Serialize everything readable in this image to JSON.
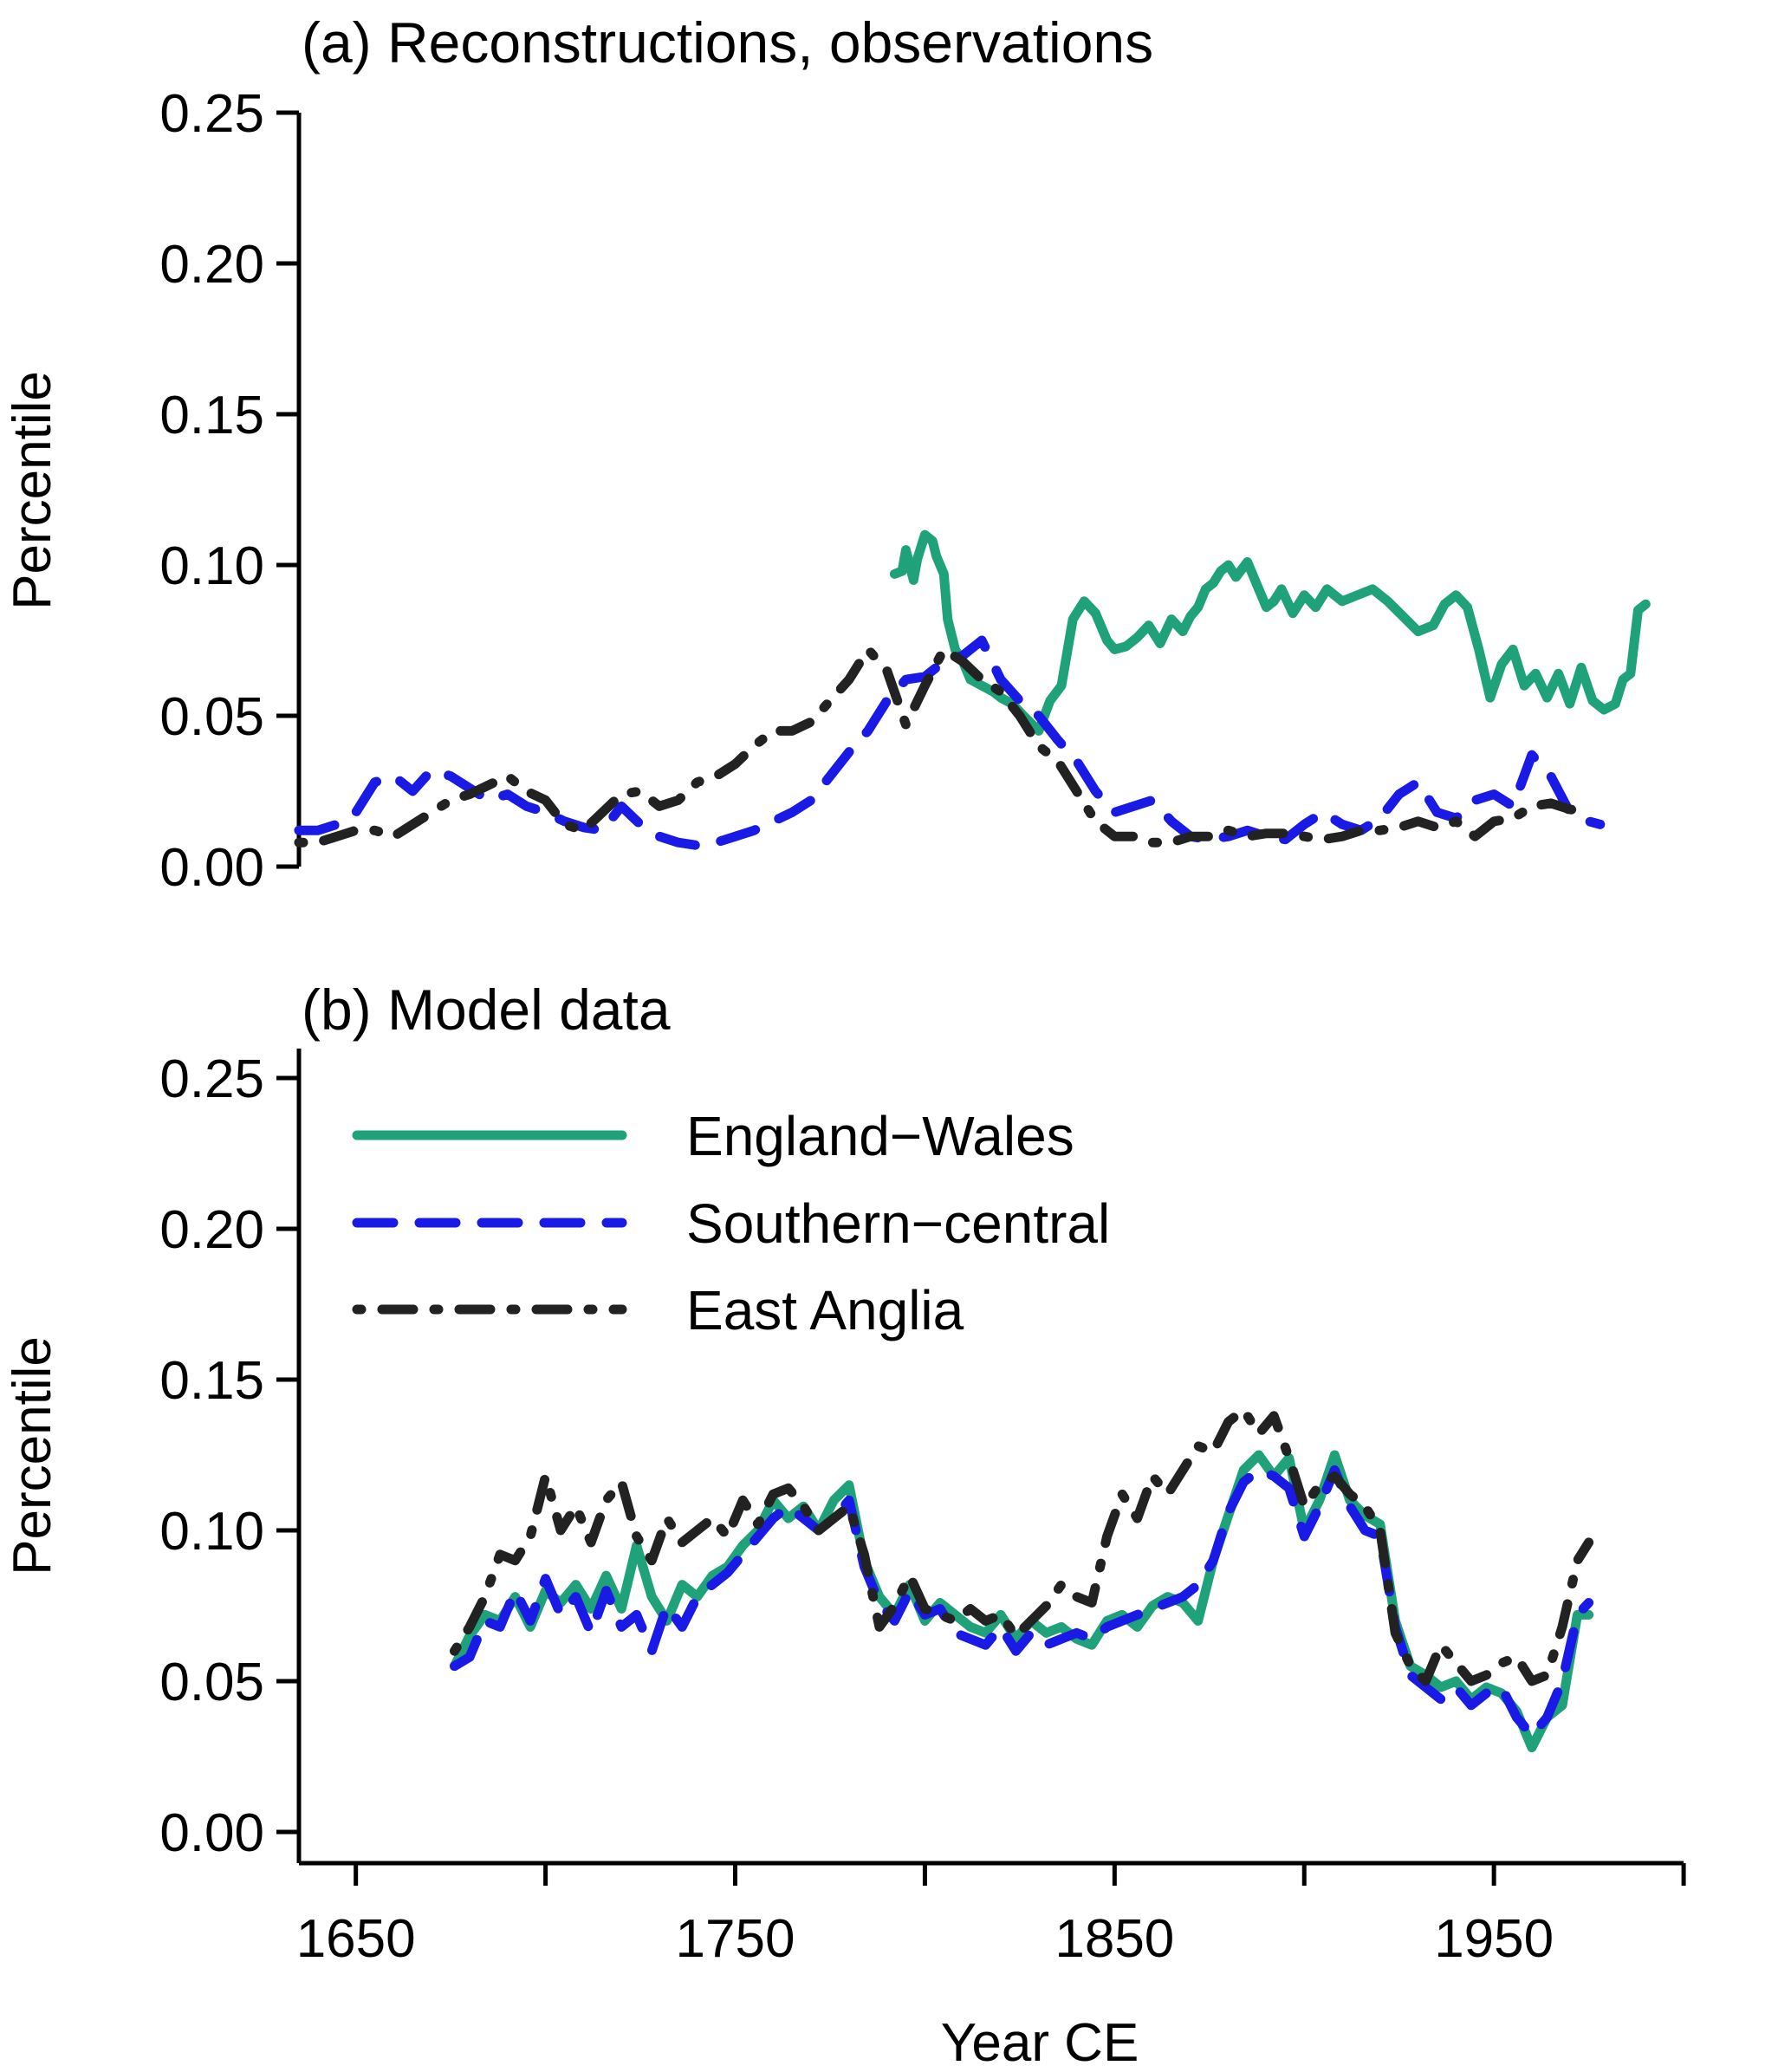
{
  "colors": {
    "england_wales": "#1fa17a",
    "southern_central": "#1a1ae6",
    "east_anglia": "#222222",
    "axis": "#000000"
  },
  "chart_data": [
    {
      "type": "line",
      "title": "(a) Reconstructions, observations",
      "xlabel": "",
      "ylabel": "Percentile",
      "xlim": [
        1635,
        2013
      ],
      "ylim": [
        0,
        0.25
      ],
      "yticks": [
        "0.00",
        "0.05",
        "0.10",
        "0.15",
        "0.20",
        "0.25"
      ],
      "yticks_values": [
        0,
        0.05,
        0.1,
        0.15,
        0.2,
        0.25
      ],
      "series": [
        {
          "name": "England−Wales",
          "key": "england_wales",
          "style": "solid",
          "x": [
            1792,
            1794,
            1795,
            1797,
            1798,
            1800,
            1802,
            1803,
            1805,
            1806,
            1808,
            1810,
            1812,
            1815,
            1818,
            1820,
            1823,
            1826,
            1830,
            1833,
            1836,
            1839,
            1842,
            1845,
            1848,
            1850,
            1853,
            1856,
            1859,
            1862,
            1865,
            1868,
            1870,
            1872,
            1874,
            1876,
            1878,
            1880,
            1882,
            1885,
            1888,
            1890,
            1892,
            1894,
            1897,
            1900,
            1903,
            1906,
            1910,
            1914,
            1918,
            1922,
            1926,
            1930,
            1934,
            1937,
            1940,
            1943,
            1946,
            1949,
            1952,
            1955,
            1958,
            1961,
            1964,
            1967,
            1970,
            1973,
            1976,
            1979,
            1982,
            1984,
            1986,
            1988,
            1990
          ],
          "y": [
            0.097,
            0.098,
            0.105,
            0.095,
            0.102,
            0.11,
            0.108,
            0.103,
            0.097,
            0.082,
            0.072,
            0.068,
            0.062,
            0.06,
            0.058,
            0.056,
            0.054,
            0.05,
            0.045,
            0.055,
            0.06,
            0.082,
            0.088,
            0.084,
            0.075,
            0.072,
            0.073,
            0.076,
            0.08,
            0.074,
            0.082,
            0.078,
            0.083,
            0.086,
            0.092,
            0.094,
            0.098,
            0.1,
            0.096,
            0.101,
            0.092,
            0.086,
            0.088,
            0.092,
            0.084,
            0.09,
            0.086,
            0.092,
            0.088,
            0.09,
            0.092,
            0.088,
            0.083,
            0.078,
            0.08,
            0.087,
            0.09,
            0.086,
            0.072,
            0.056,
            0.067,
            0.072,
            0.06,
            0.064,
            0.056,
            0.064,
            0.054,
            0.066,
            0.055,
            0.052,
            0.054,
            0.062,
            0.064,
            0.085,
            0.087
          ]
        },
        {
          "name": "Southern−central",
          "key": "southern_central",
          "style": "dashed",
          "x": [
            1635,
            1640,
            1645,
            1650,
            1655,
            1660,
            1665,
            1670,
            1675,
            1680,
            1685,
            1690,
            1695,
            1700,
            1705,
            1710,
            1715,
            1720,
            1725,
            1730,
            1735,
            1740,
            1745,
            1750,
            1755,
            1760,
            1765,
            1770,
            1775,
            1780,
            1785,
            1790,
            1795,
            1800,
            1805,
            1810,
            1815,
            1820,
            1825,
            1830,
            1835,
            1840,
            1845,
            1850,
            1855,
            1860,
            1865,
            1870,
            1875,
            1880,
            1885,
            1890,
            1895,
            1900,
            1905,
            1910,
            1915,
            1920,
            1925,
            1930,
            1935,
            1940,
            1945,
            1950,
            1955,
            1960,
            1965,
            1970,
            1975,
            1978
          ],
          "y": [
            0.012,
            0.012,
            0.014,
            0.018,
            0.028,
            0.03,
            0.025,
            0.032,
            0.03,
            0.026,
            0.022,
            0.024,
            0.02,
            0.018,
            0.015,
            0.013,
            0.012,
            0.02,
            0.014,
            0.01,
            0.008,
            0.007,
            0.008,
            0.01,
            0.012,
            0.015,
            0.018,
            0.022,
            0.03,
            0.038,
            0.045,
            0.055,
            0.062,
            0.063,
            0.068,
            0.07,
            0.075,
            0.062,
            0.055,
            0.05,
            0.042,
            0.035,
            0.025,
            0.018,
            0.02,
            0.022,
            0.015,
            0.01,
            0.009,
            0.01,
            0.012,
            0.01,
            0.009,
            0.014,
            0.018,
            0.014,
            0.012,
            0.016,
            0.024,
            0.028,
            0.018,
            0.016,
            0.022,
            0.024,
            0.02,
            0.037,
            0.03,
            0.018,
            0.015,
            0.014
          ]
        },
        {
          "name": "East Anglia",
          "key": "east_anglia",
          "style": "dashdot",
          "x": [
            1635,
            1640,
            1645,
            1650,
            1655,
            1660,
            1665,
            1670,
            1675,
            1680,
            1685,
            1690,
            1695,
            1700,
            1705,
            1710,
            1715,
            1720,
            1725,
            1730,
            1735,
            1740,
            1745,
            1750,
            1755,
            1760,
            1765,
            1770,
            1775,
            1780,
            1785,
            1790,
            1795,
            1800,
            1805,
            1810,
            1815,
            1820,
            1825,
            1830,
            1835,
            1840,
            1845,
            1850,
            1855,
            1860,
            1865,
            1870,
            1875,
            1880,
            1885,
            1890,
            1895,
            1900,
            1905,
            1910,
            1915,
            1920,
            1925,
            1930,
            1935,
            1940,
            1945,
            1950,
            1955,
            1960,
            1965,
            1970,
            1975
          ],
          "y": [
            0.008,
            0.008,
            0.01,
            0.012,
            0.012,
            0.01,
            0.014,
            0.018,
            0.022,
            0.024,
            0.027,
            0.03,
            0.025,
            0.022,
            0.014,
            0.012,
            0.018,
            0.024,
            0.025,
            0.02,
            0.022,
            0.028,
            0.03,
            0.034,
            0.04,
            0.045,
            0.045,
            0.048,
            0.055,
            0.062,
            0.072,
            0.065,
            0.047,
            0.06,
            0.072,
            0.068,
            0.062,
            0.058,
            0.05,
            0.04,
            0.035,
            0.025,
            0.015,
            0.01,
            0.01,
            0.008,
            0.008,
            0.01,
            0.01,
            0.012,
            0.01,
            0.011,
            0.011,
            0.01,
            0.009,
            0.01,
            0.012,
            0.012,
            0.013,
            0.015,
            0.013,
            0.015,
            0.01,
            0.015,
            0.016,
            0.02,
            0.021,
            0.019,
            0.018
          ]
        }
      ]
    },
    {
      "type": "line",
      "title": "(b) Model data",
      "xlabel": "Year CE",
      "ylabel": "Percentile",
      "xlim": [
        1635,
        2013
      ],
      "ylim": [
        0,
        0.25
      ],
      "xticks": [
        "1650",
        "1750",
        "1850",
        "1950"
      ],
      "xticks_values": [
        1650,
        1750,
        1850,
        1950
      ],
      "xticks_minor": [
        1700,
        1800,
        1900,
        2000
      ],
      "yticks": [
        "0.00",
        "0.05",
        "0.10",
        "0.15",
        "0.20",
        "0.25"
      ],
      "yticks_values": [
        0,
        0.05,
        0.1,
        0.15,
        0.2,
        0.25
      ],
      "legend_position": "top-left",
      "series": [
        {
          "name": "England−Wales",
          "key": "england_wales",
          "style": "solid",
          "x": [
            1676,
            1680,
            1684,
            1688,
            1692,
            1696,
            1700,
            1704,
            1708,
            1712,
            1716,
            1720,
            1724,
            1728,
            1732,
            1736,
            1740,
            1744,
            1748,
            1752,
            1756,
            1760,
            1764,
            1768,
            1772,
            1776,
            1780,
            1784,
            1788,
            1792,
            1796,
            1800,
            1804,
            1808,
            1812,
            1816,
            1820,
            1824,
            1828,
            1832,
            1836,
            1840,
            1844,
            1848,
            1852,
            1856,
            1860,
            1864,
            1868,
            1872,
            1876,
            1880,
            1884,
            1888,
            1892,
            1896,
            1900,
            1904,
            1908,
            1912,
            1916,
            1920,
            1924,
            1928,
            1932,
            1936,
            1940,
            1944,
            1948,
            1952,
            1956,
            1960,
            1964,
            1968,
            1972,
            1975
          ],
          "y": [
            0.055,
            0.065,
            0.072,
            0.07,
            0.078,
            0.068,
            0.08,
            0.076,
            0.082,
            0.074,
            0.085,
            0.074,
            0.095,
            0.078,
            0.07,
            0.082,
            0.078,
            0.085,
            0.088,
            0.095,
            0.1,
            0.11,
            0.104,
            0.108,
            0.1,
            0.11,
            0.115,
            0.09,
            0.078,
            0.072,
            0.082,
            0.07,
            0.076,
            0.072,
            0.068,
            0.066,
            0.072,
            0.064,
            0.07,
            0.066,
            0.068,
            0.064,
            0.062,
            0.07,
            0.072,
            0.068,
            0.075,
            0.078,
            0.076,
            0.07,
            0.09,
            0.105,
            0.12,
            0.125,
            0.118,
            0.124,
            0.1,
            0.11,
            0.125,
            0.11,
            0.105,
            0.102,
            0.07,
            0.055,
            0.052,
            0.048,
            0.05,
            0.044,
            0.048,
            0.046,
            0.04,
            0.028,
            0.038,
            0.042,
            0.072,
            0.072
          ]
        },
        {
          "name": "Southern−central",
          "key": "southern_central",
          "style": "dashed",
          "x": [
            1676,
            1680,
            1684,
            1688,
            1692,
            1696,
            1700,
            1704,
            1708,
            1712,
            1716,
            1720,
            1724,
            1728,
            1732,
            1736,
            1740,
            1744,
            1748,
            1752,
            1756,
            1760,
            1764,
            1768,
            1772,
            1776,
            1780,
            1784,
            1788,
            1792,
            1796,
            1800,
            1804,
            1808,
            1812,
            1816,
            1820,
            1824,
            1828,
            1832,
            1836,
            1840,
            1844,
            1848,
            1852,
            1856,
            1860,
            1864,
            1868,
            1872,
            1876,
            1880,
            1884,
            1888,
            1892,
            1896,
            1900,
            1904,
            1908,
            1912,
            1916,
            1920,
            1924,
            1928,
            1932,
            1936,
            1940,
            1944,
            1948,
            1952,
            1956,
            1960,
            1964,
            1968,
            1972,
            1975
          ],
          "y": [
            0.055,
            0.058,
            0.07,
            0.068,
            0.08,
            0.07,
            0.084,
            0.072,
            0.078,
            0.066,
            0.08,
            0.068,
            0.072,
            0.06,
            0.075,
            0.068,
            0.078,
            0.082,
            0.086,
            0.092,
            0.098,
            0.104,
            0.108,
            0.104,
            0.1,
            0.104,
            0.11,
            0.088,
            0.076,
            0.07,
            0.08,
            0.072,
            0.074,
            0.066,
            0.064,
            0.062,
            0.068,
            0.06,
            0.066,
            0.062,
            0.064,
            0.066,
            0.064,
            0.068,
            0.07,
            0.072,
            0.074,
            0.076,
            0.078,
            0.082,
            0.09,
            0.106,
            0.116,
            0.12,
            0.118,
            0.114,
            0.098,
            0.108,
            0.12,
            0.108,
            0.1,
            0.098,
            0.068,
            0.052,
            0.048,
            0.044,
            0.048,
            0.042,
            0.046,
            0.048,
            0.038,
            0.032,
            0.038,
            0.05,
            0.072,
            0.076
          ]
        },
        {
          "name": "East Anglia",
          "key": "east_anglia",
          "style": "dashdot",
          "x": [
            1676,
            1680,
            1684,
            1688,
            1692,
            1696,
            1700,
            1704,
            1708,
            1712,
            1716,
            1720,
            1724,
            1728,
            1732,
            1736,
            1740,
            1744,
            1748,
            1752,
            1756,
            1760,
            1764,
            1768,
            1772,
            1776,
            1780,
            1784,
            1788,
            1792,
            1796,
            1800,
            1804,
            1808,
            1812,
            1816,
            1820,
            1824,
            1828,
            1832,
            1836,
            1840,
            1844,
            1848,
            1852,
            1856,
            1860,
            1864,
            1868,
            1872,
            1876,
            1880,
            1884,
            1888,
            1892,
            1896,
            1900,
            1904,
            1908,
            1912,
            1916,
            1920,
            1924,
            1928,
            1932,
            1936,
            1940,
            1944,
            1948,
            1952,
            1956,
            1960,
            1964,
            1968,
            1972,
            1975
          ],
          "y": [
            0.06,
            0.068,
            0.078,
            0.092,
            0.09,
            0.098,
            0.118,
            0.1,
            0.108,
            0.096,
            0.11,
            0.116,
            0.098,
            0.09,
            0.104,
            0.096,
            0.1,
            0.104,
            0.098,
            0.11,
            0.102,
            0.112,
            0.114,
            0.108,
            0.1,
            0.104,
            0.108,
            0.092,
            0.068,
            0.075,
            0.085,
            0.074,
            0.072,
            0.07,
            0.074,
            0.07,
            0.072,
            0.065,
            0.07,
            0.075,
            0.082,
            0.078,
            0.076,
            0.098,
            0.112,
            0.104,
            0.118,
            0.112,
            0.12,
            0.128,
            0.126,
            0.136,
            0.14,
            0.132,
            0.138,
            0.124,
            0.108,
            0.115,
            0.118,
            0.112,
            0.108,
            0.1,
            0.066,
            0.055,
            0.05,
            0.062,
            0.056,
            0.05,
            0.052,
            0.056,
            0.058,
            0.05,
            0.052,
            0.068,
            0.09,
            0.096
          ]
        }
      ]
    }
  ]
}
